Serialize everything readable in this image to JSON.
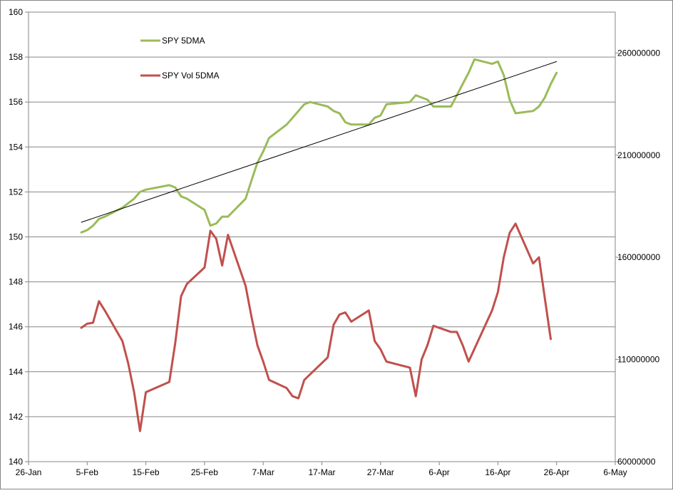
{
  "chart_data": {
    "type": "line",
    "title": "",
    "xlabel": "",
    "ylabel": "",
    "y2label": "",
    "x_axis": {
      "type": "date",
      "range": [
        "2013-01-26",
        "2013-05-06"
      ],
      "tick_labels": [
        "26-Jan",
        "5-Feb",
        "15-Feb",
        "25-Feb",
        "7-Mar",
        "17-Mar",
        "27-Mar",
        "6-Apr",
        "16-Apr",
        "26-Apr",
        "6-May"
      ]
    },
    "y_axis_left": {
      "range": [
        140,
        160
      ],
      "tick_labels": [
        "140",
        "142",
        "144",
        "146",
        "148",
        "150",
        "152",
        "154",
        "156",
        "158",
        "160"
      ],
      "gridlines": true
    },
    "y_axis_right": {
      "range": [
        60000000,
        280000000
      ],
      "tick_labels": [
        "60000000",
        "110000000",
        "160000000",
        "210000000",
        "260000000"
      ]
    },
    "legend": {
      "placement": "top-left, inside plot",
      "entries": [
        {
          "label": "SPY 5DMA",
          "color": "#9bbb59"
        },
        {
          "label": "SPY Vol 5DMA",
          "color": "#c0504d"
        }
      ]
    },
    "series": [
      {
        "name": "SPY 5DMA",
        "axis": "left",
        "color": "#9bbb59",
        "points": [
          [
            "2013-02-04",
            150.2
          ],
          [
            "2013-02-05",
            150.3
          ],
          [
            "2013-02-06",
            150.5
          ],
          [
            "2013-02-07",
            150.8
          ],
          [
            "2013-02-08",
            150.9
          ],
          [
            "2013-02-11",
            151.3
          ],
          [
            "2013-02-12",
            151.5
          ],
          [
            "2013-02-13",
            151.7
          ],
          [
            "2013-02-14",
            152.0
          ],
          [
            "2013-02-15",
            152.1
          ],
          [
            "2013-02-19",
            152.3
          ],
          [
            "2013-02-20",
            152.2
          ],
          [
            "2013-02-21",
            151.8
          ],
          [
            "2013-02-22",
            151.7
          ],
          [
            "2013-02-25",
            151.2
          ],
          [
            "2013-02-26",
            150.5
          ],
          [
            "2013-02-27",
            150.6
          ],
          [
            "2013-02-28",
            150.9
          ],
          [
            "2013-03-01",
            150.9
          ],
          [
            "2013-03-04",
            151.7
          ],
          [
            "2013-03-05",
            152.5
          ],
          [
            "2013-03-06",
            153.3
          ],
          [
            "2013-03-07",
            153.8
          ],
          [
            "2013-03-08",
            154.4
          ],
          [
            "2013-03-11",
            155.0
          ],
          [
            "2013-03-12",
            155.3
          ],
          [
            "2013-03-13",
            155.6
          ],
          [
            "2013-03-14",
            155.9
          ],
          [
            "2013-03-15",
            156.0
          ],
          [
            "2013-03-18",
            155.8
          ],
          [
            "2013-03-19",
            155.6
          ],
          [
            "2013-03-20",
            155.5
          ],
          [
            "2013-03-21",
            155.1
          ],
          [
            "2013-03-22",
            155.0
          ],
          [
            "2013-03-25",
            155.0
          ],
          [
            "2013-03-26",
            155.3
          ],
          [
            "2013-03-27",
            155.4
          ],
          [
            "2013-03-28",
            155.9
          ],
          [
            "2013-04-01",
            156.0
          ],
          [
            "2013-04-02",
            156.3
          ],
          [
            "2013-04-03",
            156.2
          ],
          [
            "2013-04-04",
            156.1
          ],
          [
            "2013-04-05",
            155.8
          ],
          [
            "2013-04-08",
            155.8
          ],
          [
            "2013-04-09",
            156.3
          ],
          [
            "2013-04-10",
            156.8
          ],
          [
            "2013-04-11",
            157.3
          ],
          [
            "2013-04-12",
            157.9
          ],
          [
            "2013-04-15",
            157.7
          ],
          [
            "2013-04-16",
            157.8
          ],
          [
            "2013-04-17",
            157.2
          ],
          [
            "2013-04-18",
            156.1
          ],
          [
            "2013-04-19",
            155.5
          ],
          [
            "2013-04-22",
            155.6
          ],
          [
            "2013-04-23",
            155.8
          ],
          [
            "2013-04-24",
            156.2
          ],
          [
            "2013-04-25",
            156.8
          ],
          [
            "2013-04-26",
            157.3
          ]
        ]
      },
      {
        "name": "SPY Vol 5DMA",
        "axis": "right",
        "color": "#c0504d",
        "points": [
          [
            "2013-02-04",
            125500000
          ],
          [
            "2013-02-05",
            127500000
          ],
          [
            "2013-02-06",
            128000000
          ],
          [
            "2013-02-07",
            138500000
          ],
          [
            "2013-02-08",
            134000000
          ],
          [
            "2013-02-11",
            119000000
          ],
          [
            "2013-02-12",
            108000000
          ],
          [
            "2013-02-13",
            94000000
          ],
          [
            "2013-02-14",
            75000000
          ],
          [
            "2013-02-15",
            94000000
          ],
          [
            "2013-02-19",
            99000000
          ],
          [
            "2013-02-20",
            118000000
          ],
          [
            "2013-02-21",
            141000000
          ],
          [
            "2013-02-22",
            147000000
          ],
          [
            "2013-02-25",
            155000000
          ],
          [
            "2013-02-26",
            173000000
          ],
          [
            "2013-02-27",
            169000000
          ],
          [
            "2013-02-28",
            156000000
          ],
          [
            "2013-03-01",
            171000000
          ],
          [
            "2013-03-04",
            146000000
          ],
          [
            "2013-03-05",
            131000000
          ],
          [
            "2013-03-06",
            117000000
          ],
          [
            "2013-03-07",
            109000000
          ],
          [
            "2013-03-08",
            100000000
          ],
          [
            "2013-03-11",
            96000000
          ],
          [
            "2013-03-12",
            92000000
          ],
          [
            "2013-03-13",
            91000000
          ],
          [
            "2013-03-14",
            100000000
          ],
          [
            "2013-03-18",
            111000000
          ],
          [
            "2013-03-19",
            127000000
          ],
          [
            "2013-03-20",
            132000000
          ],
          [
            "2013-03-21",
            133000000
          ],
          [
            "2013-03-22",
            128500000
          ],
          [
            "2013-03-25",
            134000000
          ],
          [
            "2013-03-26",
            119000000
          ],
          [
            "2013-03-27",
            115000000
          ],
          [
            "2013-03-28",
            109000000
          ],
          [
            "2013-04-01",
            106000000
          ],
          [
            "2013-04-02",
            92000000
          ],
          [
            "2013-04-03",
            110000000
          ],
          [
            "2013-04-04",
            117000000
          ],
          [
            "2013-04-05",
            126500000
          ],
          [
            "2013-04-08",
            123500000
          ],
          [
            "2013-04-09",
            123500000
          ],
          [
            "2013-04-10",
            117000000
          ],
          [
            "2013-04-11",
            109000000
          ],
          [
            "2013-04-15",
            134000000
          ],
          [
            "2013-04-16",
            143000000
          ],
          [
            "2013-04-17",
            160000000
          ],
          [
            "2013-04-18",
            172000000
          ],
          [
            "2013-04-19",
            176500000
          ],
          [
            "2013-04-22",
            157000000
          ],
          [
            "2013-04-23",
            160000000
          ],
          [
            "2013-04-24",
            140000000
          ],
          [
            "2013-04-25",
            120000000
          ]
        ]
      },
      {
        "name": "",
        "axis": "left",
        "type": "trendline",
        "color": "#000000",
        "points": [
          [
            "2013-02-04",
            150.65
          ],
          [
            "2013-04-26",
            157.8
          ]
        ]
      }
    ]
  }
}
